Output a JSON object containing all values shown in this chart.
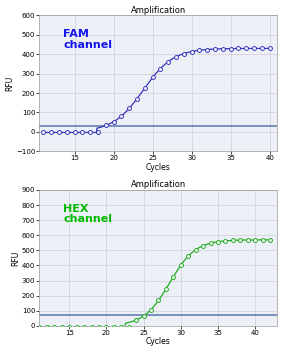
{
  "plot1": {
    "title": "Amplification",
    "label": "FAM\nchannel",
    "label_color": "#1515EE",
    "line_color": "#3333BB",
    "marker_color": "#3333BB",
    "threshold": 32,
    "threshold_color": "#5577AA",
    "ylim": [
      -100,
      600
    ],
    "yticks": [
      -100,
      0,
      100,
      200,
      300,
      400,
      500,
      600
    ],
    "xlim": [
      10.5,
      41
    ],
    "xticks": [
      15,
      20,
      25,
      30,
      35,
      40
    ],
    "xlabel": "Cycles",
    "ylabel": "RFU",
    "sigmoid_L": 430,
    "sigmoid_k": 0.52,
    "sigmoid_x0": 23.8,
    "x_start": 11,
    "x_end": 40,
    "baseline": -3
  },
  "plot2": {
    "title": "Amplification",
    "label": "HEX\nchannel",
    "label_color": "#00BB00",
    "line_color": "#22AA22",
    "marker_color": "#22AA22",
    "threshold": 75,
    "threshold_color": "#5577AA",
    "ylim": [
      0,
      900
    ],
    "yticks": [
      0,
      100,
      200,
      300,
      400,
      500,
      600,
      700,
      800,
      900
    ],
    "xlim": [
      11,
      43
    ],
    "xticks": [
      15,
      20,
      25,
      30,
      35,
      40
    ],
    "xlabel": "Cycles",
    "ylabel": "RFU",
    "sigmoid_L": 570,
    "sigmoid_k": 0.58,
    "sigmoid_x0": 28.5,
    "x_start": 11,
    "x_end": 42,
    "baseline": -10
  },
  "fig_bg": "#FFFFFF",
  "plot_bg": "#EEF0F8",
  "grid_color": "#BBBBCC",
  "tick_label_size": 5,
  "axis_label_size": 5.5,
  "title_fontsize": 6,
  "channel_label_fontsize": 8
}
